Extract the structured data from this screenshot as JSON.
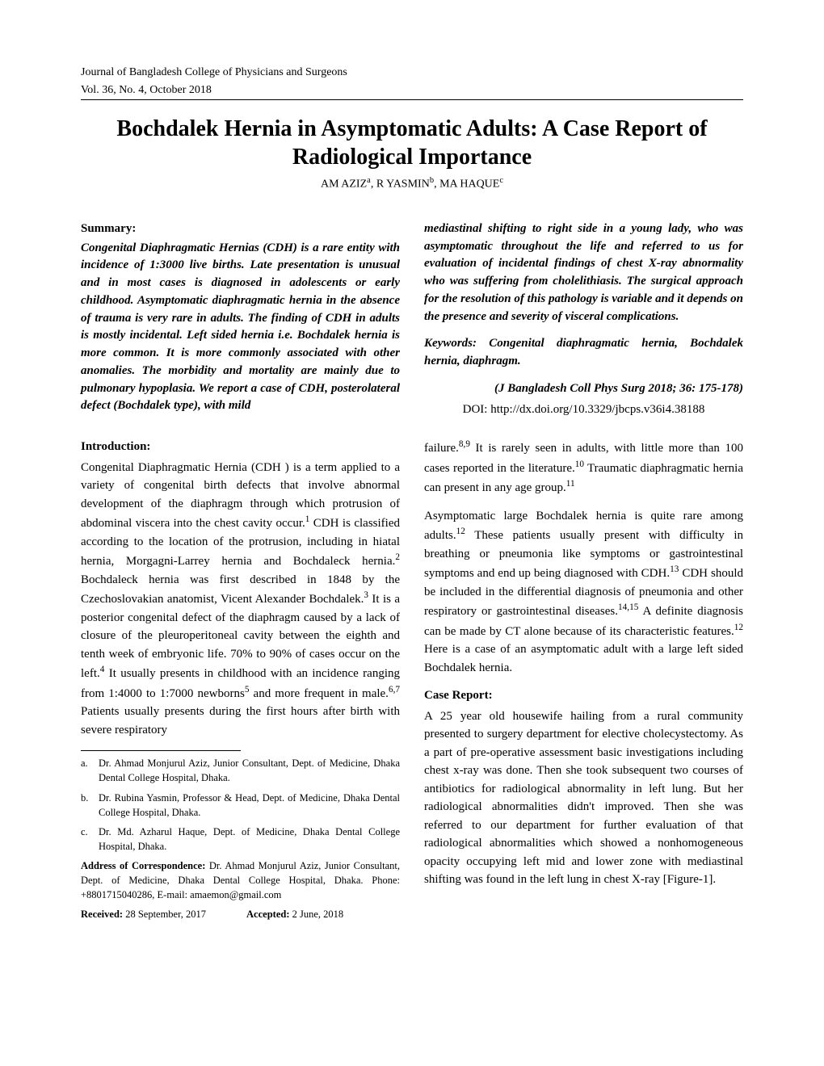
{
  "header": {
    "journal": "Journal of Bangladesh College of Physicians and Surgeons",
    "issue": "Vol. 36, No. 4, October 2018"
  },
  "title": "Bochdalek Hernia in Asymptomatic Adults: A Case Report of Radiological Importance",
  "authors_html": "AM AZIZ<sup>a</sup>, R YASMIN<sup>b</sup>, MA HAQUE<sup>c</sup>",
  "summary": {
    "heading": "Summary:",
    "left": "Congenital Diaphragmatic Hernias (CDH) is a rare entity with incidence of 1:3000 live births. Late presentation is unusual and in most cases is diagnosed in adolescents or early childhood. Asymptomatic diaphragmatic hernia in the absence of trauma is very rare in adults. The finding of CDH in adults is mostly incidental. Left sided hernia i.e. Bochdalek hernia is more common. It is more commonly associated with other anomalies. The morbidity and mortality are mainly due to pulmonary hypoplasia. We report a case of CDH, posterolateral defect (Bochdalek type), with mild",
    "right": "mediastinal shifting to right side in a young lady, who was asymptomatic throughout the life and referred to us for evaluation of incidental findings of chest X-ray abnormality who was suffering from cholelithiasis. The surgical approach for the resolution of this pathology is variable and it depends on the presence and severity of visceral complications.",
    "keywords": "Keywords: Congenital diaphragmatic hernia, Bochdalek hernia, diaphragm.",
    "citation": "(J Bangladesh Coll Phys Surg 2018; 36: 175-178)",
    "doi_label": "DOI: ",
    "doi": "http://dx.doi.org/10.3329/jbcps.v36i4.38188"
  },
  "intro": {
    "heading": "Introduction:",
    "text_html": "Congenital Diaphragmatic Hernia (CDH ) is a term applied to a variety of congenital birth defects that involve abnormal development of the diaphragm through which protrusion of abdominal viscera into the chest cavity occur.<sup>1</sup> CDH is classified according to the location of the protrusion, including in hiatal hernia, Morgagni-Larrey hernia and Bochdaleck hernia.<sup>2</sup> Bochdaleck hernia was first described in 1848 by the Czechoslovakian anatomist, Vicent Alexander Bochdalek.<sup>3</sup> It is a posterior congenital defect of the diaphragm caused by a lack of closure of the pleuroperitoneal cavity between the eighth and tenth week of embryonic life. 70% to 90% of cases occur on the left.<sup>4</sup> It usually presents in childhood with an incidence ranging from 1:4000 to 1:7000 newborns<sup>5</sup> and more frequent in male.<sup>6,7</sup> Patients usually presents during the first hours after birth with severe respiratory"
  },
  "footnotes": {
    "a": {
      "marker": "a.",
      "text": "Dr. Ahmad Monjurul Aziz, Junior Consultant, Dept. of Medicine, Dhaka Dental College Hospital, Dhaka."
    },
    "b": {
      "marker": "b.",
      "text": "Dr. Rubina Yasmin, Professor & Head, Dept. of Medicine, Dhaka Dental College Hospital, Dhaka."
    },
    "c": {
      "marker": "c.",
      "text": "Dr. Md. Azharul Haque, Dept. of Medicine, Dhaka Dental College Hospital, Dhaka."
    }
  },
  "correspondence": {
    "label": "Address of Correspondence:",
    "text": " Dr. Ahmad Monjurul Aziz, Junior Consultant, Dept. of Medicine, Dhaka Dental College Hospital, Dhaka. Phone: +8801715040286, E-mail: amaemon@gmail.com"
  },
  "dates": {
    "received_label": "Received:",
    "received": " 28 September, 2017",
    "accepted_label": "Accepted:",
    "accepted": " 2 June, 2018"
  },
  "col2": {
    "para1_html": "failure.<sup>8,9</sup>  It is rarely seen in adults, with little more than 100 cases reported in the literature.<sup>10</sup> Traumatic diaphragmatic hernia can present in any age group.<sup>11</sup>",
    "para2_html": "Asymptomatic large Bochdalek hernia is quite rare among adults.<sup>12</sup> These patients usually present with difficulty in breathing or pneumonia like symptoms or gastrointestinal symptoms and end up being diagnosed with CDH.<sup>13</sup> CDH should be included in the differential diagnosis of pneumonia and other respiratory or gastrointestinal diseases.<sup>14,15</sup> A definite diagnosis can be made by CT alone because of its characteristic features.<sup>12</sup> Here is a case of an asymptomatic adult with a large left sided Bochdalek hernia."
  },
  "case": {
    "heading": "Case Report:",
    "text": "A 25 year old housewife hailing from a rural community presented to surgery department for elective cholecystectomy. As a part of pre-operative assessment basic investigations including chest x-ray was done. Then she took subsequent two courses of antibiotics for radiological abnormality in left lung. But her radiological abnormalities didn't improved. Then she was referred to our department for further evaluation of that radiological  abnormalities which showed a nonhomogeneous opacity occupying left mid and lower zone with mediastinal shifting was found in the left lung in chest X-ray [Figure-1]."
  },
  "style": {
    "page_bg": "#ffffff",
    "text_color": "#000000",
    "title_fontsize": 28,
    "body_fontsize": 15,
    "footnote_fontsize": 12.5,
    "header_fontsize": 14,
    "column_gap": 30
  }
}
